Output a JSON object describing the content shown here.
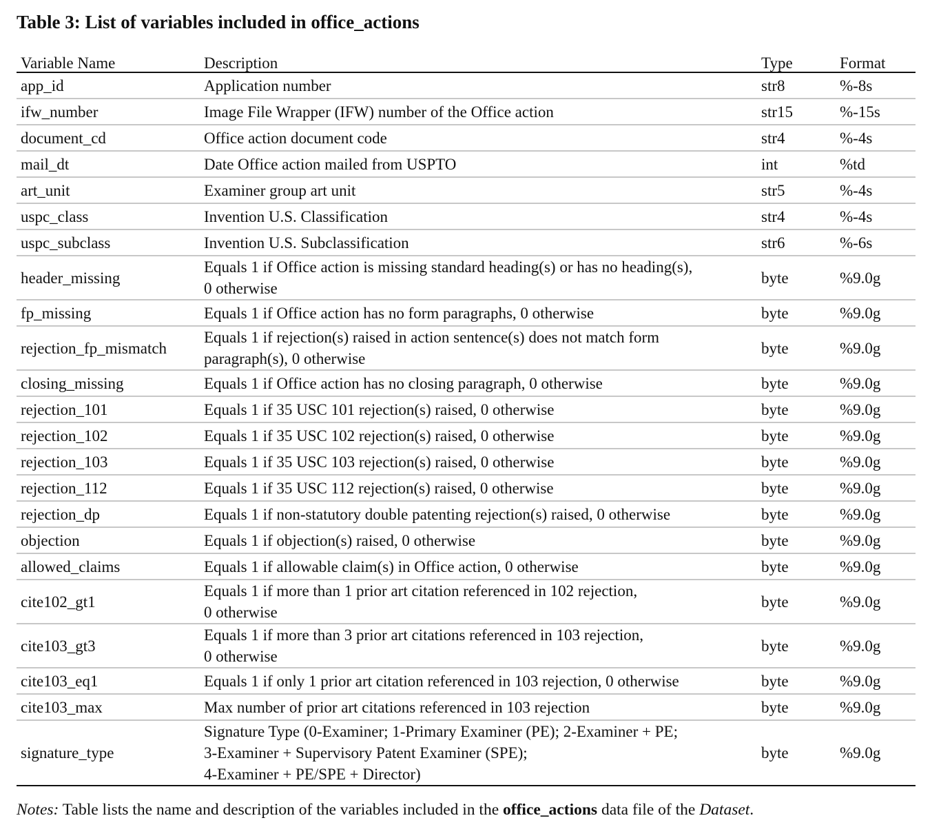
{
  "title": "Table 3: List of variables included in office_actions",
  "headers": {
    "name": "Variable Name",
    "description": "Description",
    "type": "Type",
    "format": "Format"
  },
  "rows": [
    {
      "name": "app_id",
      "description": [
        "Application number"
      ],
      "type": "str8",
      "format": "%-8s"
    },
    {
      "name": "ifw_number",
      "description": [
        "Image File Wrapper (IFW) number of the Office action"
      ],
      "type": "str15",
      "format": "%-15s"
    },
    {
      "name": "document_cd",
      "description": [
        "Office action document code"
      ],
      "type": "str4",
      "format": "%-4s"
    },
    {
      "name": "mail_dt",
      "description": [
        "Date Office action mailed from USPTO"
      ],
      "type": "int",
      "format": "%td"
    },
    {
      "name": "art_unit",
      "description": [
        "Examiner group art unit"
      ],
      "type": "str5",
      "format": "%-4s"
    },
    {
      "name": "uspc_class",
      "description": [
        "Invention U.S. Classification"
      ],
      "type": "str4",
      "format": "%-4s"
    },
    {
      "name": "uspc_subclass",
      "description": [
        "Invention U.S. Subclassification"
      ],
      "type": "str6",
      "format": "%-6s"
    },
    {
      "name": "header_missing",
      "description": [
        "Equals 1 if Office action is missing standard heading(s) or has no heading(s),",
        "0 otherwise"
      ],
      "type": "byte",
      "format": "%9.0g"
    },
    {
      "name": "fp_missing",
      "description": [
        "Equals 1 if Office action has no form paragraphs, 0 otherwise"
      ],
      "type": "byte",
      "format": "%9.0g"
    },
    {
      "name": "rejection_fp_mismatch",
      "description": [
        "Equals 1 if rejection(s) raised in action sentence(s) does not match form",
        "paragraph(s), 0 otherwise"
      ],
      "type": "byte",
      "format": "%9.0g"
    },
    {
      "name": "closing_missing",
      "description": [
        "Equals 1 if Office action has no closing paragraph, 0 otherwise"
      ],
      "type": "byte",
      "format": "%9.0g"
    },
    {
      "name": "rejection_101",
      "description": [
        "Equals 1 if 35 USC 101 rejection(s) raised, 0 otherwise"
      ],
      "type": "byte",
      "format": "%9.0g"
    },
    {
      "name": "rejection_102",
      "description": [
        "Equals 1 if 35 USC 102 rejection(s) raised, 0 otherwise"
      ],
      "type": "byte",
      "format": "%9.0g"
    },
    {
      "name": "rejection_103",
      "description": [
        "Equals 1 if 35 USC 103 rejection(s) raised, 0 otherwise"
      ],
      "type": "byte",
      "format": "%9.0g"
    },
    {
      "name": "rejection_112",
      "description": [
        "Equals 1 if 35 USC 112 rejection(s) raised, 0 otherwise"
      ],
      "type": "byte",
      "format": "%9.0g"
    },
    {
      "name": "rejection_dp",
      "description": [
        "Equals 1 if non-statutory double patenting rejection(s) raised, 0 otherwise"
      ],
      "type": "byte",
      "format": "%9.0g"
    },
    {
      "name": "objection",
      "description": [
        "Equals 1 if objection(s) raised, 0 otherwise"
      ],
      "type": "byte",
      "format": "%9.0g"
    },
    {
      "name": "allowed_claims",
      "description": [
        "Equals 1 if allowable claim(s) in Office action, 0 otherwise"
      ],
      "type": "byte",
      "format": "%9.0g"
    },
    {
      "name": "cite102_gt1",
      "description": [
        "Equals 1 if more than 1 prior art citation referenced in 102 rejection,",
        "0 otherwise"
      ],
      "type": "byte",
      "format": "%9.0g"
    },
    {
      "name": "cite103_gt3",
      "description": [
        "Equals 1 if more than 3 prior art citations referenced in 103 rejection,",
        "0 otherwise"
      ],
      "type": "byte",
      "format": "%9.0g"
    },
    {
      "name": "cite103_eq1",
      "description": [
        "Equals 1 if only 1 prior art citation referenced in 103 rejection, 0 otherwise"
      ],
      "type": "byte",
      "format": "%9.0g"
    },
    {
      "name": "cite103_max",
      "description": [
        "Max number of prior art citations referenced in 103 rejection"
      ],
      "type": "byte",
      "format": "%9.0g"
    },
    {
      "name": "signature_type",
      "description": [
        "Signature Type (0-Examiner; 1-Primary Examiner (PE); 2-Examiner + PE;",
        "3-Examiner + Supervisory Patent Examiner (SPE);",
        "4-Examiner + PE/SPE + Director)"
      ],
      "type": "byte",
      "format": "%9.0g"
    }
  ],
  "notes": {
    "lead": "Notes:",
    "text_1": " Table lists the name and description of the variables included in the ",
    "bold": "office_actions",
    "text_2": " data file of the ",
    "italic": "Dataset",
    "text_3": "."
  }
}
